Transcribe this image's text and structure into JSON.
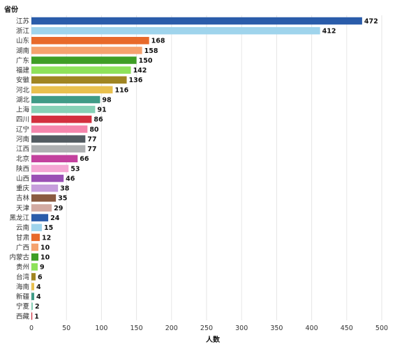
{
  "chart_data": {
    "type": "bar",
    "orientation": "horizontal",
    "ylabel": "省份",
    "xlabel": "人数",
    "xlim": [
      0,
      500
    ],
    "xticks": [
      0,
      50,
      100,
      150,
      200,
      250,
      300,
      350,
      400,
      450,
      500
    ],
    "grid": true,
    "categories": [
      "江苏",
      "浙江",
      "山东",
      "湖南",
      "广东",
      "福建",
      "安徽",
      "河北",
      "湖北",
      "上海",
      "四川",
      "辽宁",
      "河南",
      "江西",
      "北京",
      "陕西",
      "山西",
      "重庆",
      "吉林",
      "天津",
      "黑龙江",
      "云南",
      "甘肃",
      "广西",
      "内蒙古",
      "贵州",
      "台湾",
      "海南",
      "新疆",
      "宁夏",
      "西藏"
    ],
    "values": [
      472,
      412,
      168,
      158,
      150,
      142,
      136,
      116,
      98,
      91,
      86,
      80,
      77,
      77,
      66,
      53,
      46,
      38,
      35,
      29,
      24,
      15,
      12,
      10,
      10,
      9,
      6,
      4,
      4,
      2,
      1
    ],
    "value_labels": [
      "472",
      "412",
      "168",
      "158",
      "150",
      "142",
      "136",
      "116",
      "98",
      "91",
      "86",
      "80",
      "77",
      "77",
      "66",
      "53",
      "46",
      "38",
      "35",
      "29",
      "24",
      "15",
      "12",
      "10",
      "10",
      "9",
      "6",
      "4",
      "4",
      "2",
      "1"
    ],
    "colors": [
      "#2a5caa",
      "#9fd4ec",
      "#e8692a",
      "#f5a26e",
      "#3e9e25",
      "#8ee25a",
      "#a08522",
      "#e8c04e",
      "#3f9b86",
      "#86d1b6",
      "#d32f3e",
      "#f585ac",
      "#525b61",
      "#aeb0b2",
      "#c3419e",
      "#f5a6d3",
      "#9a50b5",
      "#c69ddc",
      "#8a5a40",
      "#d3aaa2",
      "#2a5caa",
      "#9fd4ec",
      "#e8692a",
      "#f5a26e",
      "#3e9e25",
      "#8ee25a",
      "#a08522",
      "#e8c04e",
      "#3f9b86",
      "#86d1b6",
      "#d32f3e"
    ]
  }
}
